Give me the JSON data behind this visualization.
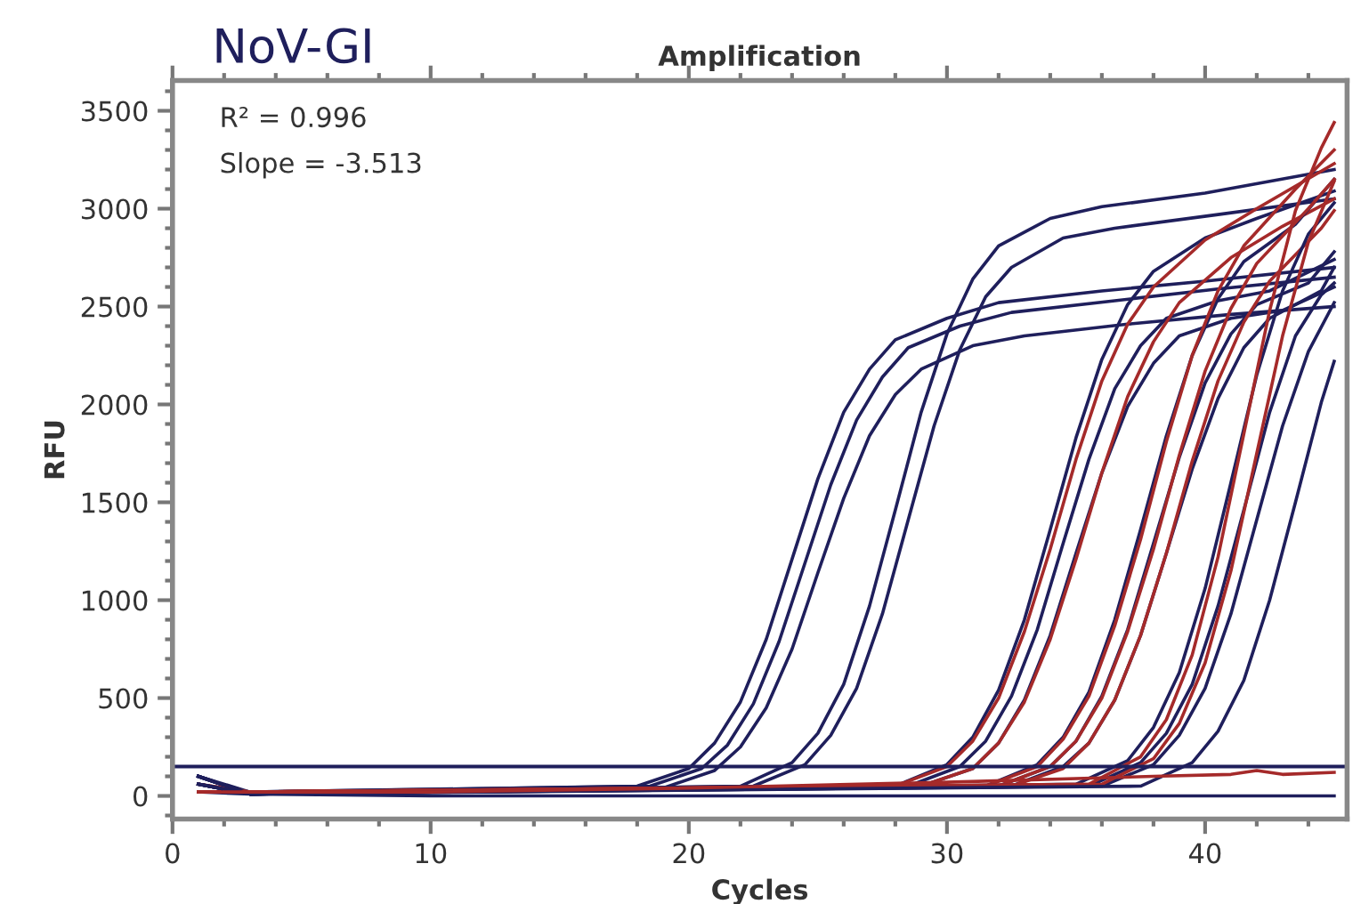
{
  "chart_data": {
    "type": "line",
    "title": "NoV-GI",
    "subtitle": "Amplification",
    "xlabel": "Cycles",
    "ylabel": "RFU",
    "annotations": [
      "R² = 0.996",
      "Slope = -3.513"
    ],
    "xlim": [
      0,
      45.5
    ],
    "xticks": [
      0,
      10,
      20,
      30,
      40
    ],
    "ylim": [
      -118,
      3655
    ],
    "yticks": [
      0,
      500,
      1000,
      1500,
      2000,
      2500,
      3000,
      3500
    ],
    "grid": false,
    "marker": "none",
    "line_style": "solid",
    "ref_lines": [
      {
        "axis": "y",
        "value": 150,
        "color": "#1f1f5c"
      }
    ],
    "series": [
      {
        "color": "#1f1f5c",
        "x": [
          1,
          3,
          18,
          20,
          21,
          22,
          23,
          24,
          25,
          26,
          27,
          28,
          30,
          32,
          36,
          40,
          45
        ],
        "values": [
          60,
          20,
          50,
          140,
          270,
          480,
          800,
          1210,
          1620,
          1960,
          2180,
          2330,
          2440,
          2520,
          2580,
          2630,
          2700
        ]
      },
      {
        "color": "#1f1f5c",
        "x": [
          1,
          3,
          18.5,
          20.5,
          21.5,
          22.5,
          23.5,
          24.5,
          25.5,
          26.5,
          27.5,
          28.5,
          30.5,
          32.5,
          36.5,
          40.5,
          45
        ],
        "values": [
          100,
          20,
          50,
          140,
          260,
          470,
          790,
          1190,
          1590,
          1920,
          2140,
          2290,
          2400,
          2470,
          2530,
          2590,
          2650
        ]
      },
      {
        "color": "#1f1f5c",
        "x": [
          1,
          3,
          19,
          21,
          22,
          23,
          24,
          25,
          26,
          27,
          28,
          29,
          31,
          33,
          37,
          41,
          45
        ],
        "values": [
          60,
          10,
          40,
          130,
          250,
          450,
          750,
          1140,
          1520,
          1840,
          2050,
          2180,
          2300,
          2350,
          2410,
          2460,
          2500
        ]
      },
      {
        "color": "#1f1f5c",
        "x": [
          1,
          3,
          22,
          24,
          25,
          26,
          27,
          28,
          29,
          30,
          31,
          32,
          34,
          36,
          40,
          45
        ],
        "values": [
          100,
          10,
          50,
          170,
          320,
          570,
          970,
          1460,
          1960,
          2360,
          2640,
          2810,
          2950,
          3010,
          3080,
          3200
        ]
      },
      {
        "color": "#1f1f5c",
        "x": [
          1,
          3,
          22.5,
          24.5,
          25.5,
          26.5,
          27.5,
          28.5,
          29.5,
          30.5,
          31.5,
          32.5,
          34.5,
          36.5,
          40.5,
          45
        ],
        "values": [
          60,
          10,
          50,
          160,
          310,
          550,
          930,
          1410,
          1890,
          2280,
          2550,
          2700,
          2850,
          2900,
          2970,
          3050
        ]
      },
      {
        "color": "#1f1f5c",
        "x": [
          1,
          3,
          28,
          30,
          31,
          32,
          33,
          34,
          35,
          36,
          37,
          38,
          40,
          42,
          45
        ],
        "values": [
          100,
          10,
          50,
          160,
          300,
          540,
          900,
          1360,
          1830,
          2230,
          2510,
          2680,
          2850,
          2950,
          3090
        ]
      },
      {
        "color": "#1f1f5c",
        "x": [
          1,
          3,
          28.5,
          30.5,
          31.5,
          32.5,
          33.5,
          34.5,
          35.5,
          36.5,
          37.5,
          38.5,
          40.5,
          42.5,
          45
        ],
        "values": [
          100,
          10,
          50,
          150,
          280,
          510,
          850,
          1290,
          1720,
          2080,
          2300,
          2440,
          2530,
          2580,
          2740
        ]
      },
      {
        "color": "#1f1f5c",
        "x": [
          1,
          3,
          29,
          31,
          32,
          33,
          34,
          35,
          36,
          37,
          38,
          39,
          41,
          43,
          45
        ],
        "values": [
          100,
          10,
          50,
          140,
          270,
          490,
          820,
          1240,
          1650,
          1990,
          2210,
          2350,
          2440,
          2480,
          2600
        ]
      },
      {
        "color": "#a52a2a",
        "x": [
          1,
          3,
          28,
          30,
          31,
          32,
          33,
          34,
          35,
          36,
          37,
          38,
          40,
          42,
          45
        ],
        "values": [
          20,
          20,
          50,
          150,
          280,
          500,
          840,
          1260,
          1720,
          2120,
          2410,
          2600,
          2840,
          3000,
          3230
        ]
      },
      {
        "color": "#a52a2a",
        "x": [
          1,
          3,
          29,
          31,
          32,
          33,
          34,
          35,
          36,
          37,
          38,
          39,
          41,
          43,
          45
        ],
        "values": [
          20,
          20,
          50,
          140,
          270,
          480,
          800,
          1210,
          1650,
          2040,
          2320,
          2520,
          2750,
          2910,
          3050
        ]
      },
      {
        "color": "#1f1f5c",
        "x": [
          1,
          3,
          31.5,
          33.5,
          34.5,
          35.5,
          36.5,
          37.5,
          38.5,
          39.5,
          40.5,
          41.5,
          43.5,
          45
        ],
        "values": [
          100,
          10,
          50,
          160,
          300,
          530,
          900,
          1360,
          1840,
          2250,
          2540,
          2730,
          2920,
          3150
        ]
      },
      {
        "color": "#1f1f5c",
        "x": [
          1,
          3,
          32,
          34,
          35,
          36,
          37,
          38,
          39,
          40,
          41,
          42,
          44,
          45
        ],
        "values": [
          60,
          10,
          50,
          150,
          280,
          510,
          850,
          1290,
          1730,
          2110,
          2360,
          2510,
          2620,
          2780
        ]
      },
      {
        "color": "#1f1f5c",
        "x": [
          1,
          3,
          32.5,
          34.5,
          35.5,
          36.5,
          37.5,
          38.5,
          39.5,
          40.5,
          41.5,
          42.5,
          44.5,
          45
        ],
        "values": [
          20,
          10,
          50,
          150,
          270,
          490,
          820,
          1240,
          1670,
          2030,
          2290,
          2440,
          2580,
          2700
        ]
      },
      {
        "color": "#a52a2a",
        "x": [
          1,
          3,
          31.5,
          33.5,
          34.5,
          35.5,
          36.5,
          37.5,
          38.5,
          39.5,
          40.5,
          41.5,
          43.5,
          45
        ],
        "values": [
          20,
          20,
          50,
          150,
          290,
          510,
          870,
          1310,
          1810,
          2250,
          2580,
          2810,
          3100,
          3300
        ]
      },
      {
        "color": "#a52a2a",
        "x": [
          1,
          3,
          32,
          34,
          35,
          36,
          37,
          38,
          39,
          40,
          41,
          42,
          44,
          45
        ],
        "values": [
          60,
          20,
          50,
          150,
          280,
          500,
          840,
          1260,
          1740,
          2170,
          2490,
          2720,
          3000,
          3150
        ]
      },
      {
        "color": "#a52a2a",
        "x": [
          1,
          3,
          32.5,
          34.5,
          35.5,
          36.5,
          37.5,
          38.5,
          39.5,
          40.5,
          41.5,
          42.5,
          44.5,
          45
        ],
        "values": [
          20,
          20,
          50,
          140,
          270,
          490,
          820,
          1240,
          1710,
          2120,
          2420,
          2630,
          2900,
          2990
        ]
      },
      {
        "color": "#1f1f5c",
        "x": [
          1,
          3,
          35,
          37,
          38,
          39,
          40,
          41,
          42,
          43,
          44,
          45
        ],
        "values": [
          100,
          10,
          60,
          180,
          350,
          630,
          1060,
          1600,
          2150,
          2580,
          2870,
          3030
        ]
      },
      {
        "color": "#1f1f5c",
        "x": [
          1,
          3,
          35.5,
          37.5,
          38.5,
          39.5,
          40.5,
          41.5,
          42.5,
          43.5,
          44.5,
          45
        ],
        "values": [
          60,
          10,
          50,
          170,
          320,
          570,
          970,
          1460,
          1960,
          2350,
          2560,
          2620
        ]
      },
      {
        "color": "#1f1f5c",
        "x": [
          1,
          3,
          36,
          38,
          39,
          40,
          41,
          42,
          43,
          44,
          45
        ],
        "values": [
          100,
          10,
          50,
          160,
          310,
          550,
          930,
          1410,
          1890,
          2270,
          2520
        ]
      },
      {
        "color": "#a52a2a",
        "x": [
          1,
          3,
          35.5,
          37.5,
          38.5,
          39.5,
          40.5,
          41.5,
          42.5,
          43.5,
          44.5,
          45
        ],
        "values": [
          20,
          20,
          60,
          200,
          390,
          720,
          1220,
          1850,
          2480,
          2990,
          3310,
          3440
        ]
      },
      {
        "color": "#a52a2a",
        "x": [
          1,
          3,
          36,
          38,
          39,
          40,
          41,
          42,
          43,
          44,
          45
        ],
        "values": [
          20,
          20,
          60,
          190,
          370,
          680,
          1150,
          1750,
          2350,
          2830,
          3140
        ]
      },
      {
        "color": "#1f1f5c",
        "x": [
          1,
          3,
          37.5,
          39.5,
          40.5,
          41.5,
          42.5,
          43.5,
          44.5,
          45
        ],
        "values": [
          60,
          10,
          50,
          170,
          330,
          590,
          1000,
          1500,
          2010,
          2220
        ]
      },
      {
        "color": "#1f1f5c",
        "x": [
          1,
          3,
          10,
          20,
          30,
          40,
          45
        ],
        "values": [
          60,
          10,
          0,
          0,
          0,
          0,
          0
        ]
      },
      {
        "color": "#a52a2a",
        "x": [
          2,
          4,
          10,
          20,
          30,
          38,
          41,
          42,
          43,
          45
        ],
        "values": [
          20,
          20,
          20,
          40,
          70,
          100,
          110,
          130,
          110,
          120
        ]
      }
    ]
  }
}
